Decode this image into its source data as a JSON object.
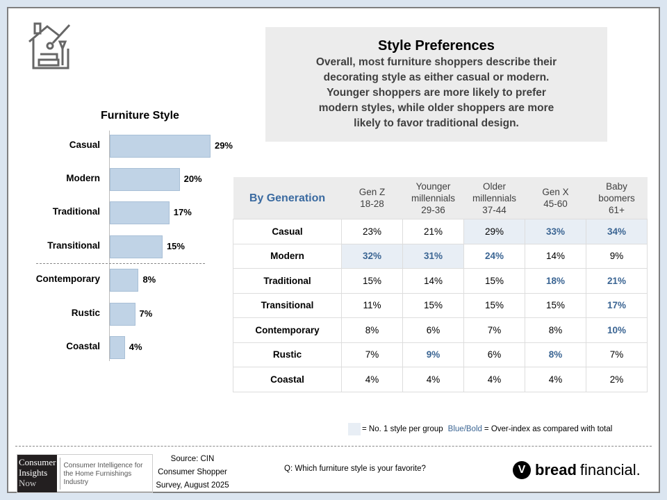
{
  "callout": {
    "title": "Style Preferences",
    "body": "Overall, most furniture shoppers describe their decorating style as either casual or modern. Younger shoppers are more likely to prefer modern styles, while older shoppers are more likely to favor traditional design."
  },
  "chart_data": {
    "type": "bar",
    "orientation": "horizontal",
    "title": "Furniture Style",
    "categories": [
      "Casual",
      "Modern",
      "Traditional",
      "Transitional",
      "Contemporary",
      "Rustic",
      "Coastal"
    ],
    "values": [
      29,
      20,
      17,
      15,
      8,
      7,
      4
    ],
    "labels": [
      "29%",
      "20%",
      "17%",
      "15%",
      "8%",
      "7%",
      "4%"
    ],
    "unit": "%",
    "xlim": [
      0,
      30
    ],
    "bar_color": "#c0d3e6"
  },
  "table": {
    "title": "By Generation",
    "columns": [
      [
        "Gen Z",
        "18-28"
      ],
      [
        "Younger",
        "millennials",
        "29-36"
      ],
      [
        "Older",
        "millennials",
        "37-44"
      ],
      [
        "Gen X",
        "45-60"
      ],
      [
        "Baby",
        "boomers",
        "61+"
      ]
    ],
    "rows": [
      {
        "label": "Casual",
        "values": [
          "23%",
          "21%",
          "29%",
          "33%",
          "34%"
        ],
        "top": [
          false,
          false,
          true,
          true,
          true
        ],
        "over": [
          false,
          false,
          false,
          true,
          true
        ]
      },
      {
        "label": "Modern",
        "values": [
          "32%",
          "31%",
          "24%",
          "14%",
          "9%"
        ],
        "top": [
          true,
          true,
          false,
          false,
          false
        ],
        "over": [
          true,
          true,
          true,
          false,
          false
        ]
      },
      {
        "label": "Traditional",
        "values": [
          "15%",
          "14%",
          "15%",
          "18%",
          "21%"
        ],
        "top": [
          false,
          false,
          false,
          false,
          false
        ],
        "over": [
          false,
          false,
          false,
          true,
          true
        ]
      },
      {
        "label": "Transitional",
        "values": [
          "11%",
          "15%",
          "15%",
          "15%",
          "17%"
        ],
        "top": [
          false,
          false,
          false,
          false,
          false
        ],
        "over": [
          false,
          false,
          false,
          false,
          true
        ]
      },
      {
        "label": "Contemporary",
        "values": [
          "8%",
          "6%",
          "7%",
          "8%",
          "10%"
        ],
        "top": [
          false,
          false,
          false,
          false,
          false
        ],
        "over": [
          false,
          false,
          false,
          false,
          true
        ]
      },
      {
        "label": "Rustic",
        "values": [
          "7%",
          "9%",
          "6%",
          "8%",
          "7%"
        ],
        "top": [
          false,
          false,
          false,
          false,
          false
        ],
        "over": [
          false,
          true,
          false,
          true,
          false
        ]
      },
      {
        "label": "Coastal",
        "values": [
          "4%",
          "4%",
          "4%",
          "4%",
          "2%"
        ],
        "top": [
          false,
          false,
          false,
          false,
          false
        ],
        "over": [
          false,
          false,
          false,
          false,
          false
        ]
      }
    ]
  },
  "legend": {
    "top": "= No. 1 style per group",
    "blue_bold": "Blue/Bold",
    "over": "= Over-index as compared with total"
  },
  "footer": {
    "logo_cin": [
      "Consumer",
      "Insights",
      "Now"
    ],
    "logo_cin_tag": "Consumer Intelligence for the Home Furnishings Industry",
    "source": [
      "Source: CIN",
      "Consumer Shopper",
      "Survey, August 2025"
    ],
    "question": "Q: Which furniture style is your favorite?",
    "brand_bold": "bread",
    "brand_light": "financial."
  },
  "colors": {
    "accent": "#3b6593",
    "highlight": "#e8eef5",
    "bar": "#c0d3e6"
  }
}
